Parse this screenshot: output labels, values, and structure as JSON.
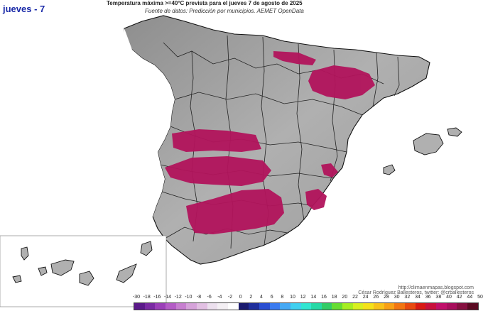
{
  "header": {
    "day_label": "jueves - 7",
    "title": "Temperatura máxima >=40°C prevista para el jueves 7 de agosto de 2025",
    "subtitle": "Fuente de datos: Predicción por municipios. AEMET OpenData"
  },
  "credits": {
    "line1": "http://climaenmapas.blogspot.com",
    "line2": "César Rodríguez Ballesteros, twitter: @crballesteros"
  },
  "legend": {
    "labels": [
      "-30",
      "-18",
      "-16",
      "-14",
      "-12",
      "-10",
      "-8",
      "-6",
      "-4",
      "-2",
      "0",
      "2",
      "4",
      "6",
      "8",
      "10",
      "12",
      "14",
      "16",
      "18",
      "20",
      "22",
      "24",
      "26",
      "28",
      "30",
      "32",
      "34",
      "36",
      "38",
      "40",
      "42",
      "44",
      "50"
    ],
    "colors": [
      "#5b1a8a",
      "#7a2aa3",
      "#9b3fb8",
      "#b45cc6",
      "#c77fd0",
      "#d6a3da",
      "#e2c0e3",
      "#ece0ee",
      "#f4f0f4",
      "#ffffff",
      "#1a1a6e",
      "#1f2f9c",
      "#2a4fd2",
      "#3a7bf0",
      "#45a9f5",
      "#40d0f0",
      "#32e6d2",
      "#26d9a6",
      "#33cc66",
      "#66dd33",
      "#a6ee22",
      "#d8f020",
      "#f4e21a",
      "#f8c21a",
      "#f8a016",
      "#f27612",
      "#e84a10",
      "#d81a14",
      "#c8103c",
      "#c00f6a",
      "#a80e5c",
      "#861040",
      "#5a0a22"
    ]
  },
  "map": {
    "land_color": "#a9a9a9",
    "highlight_color": "#b2145c",
    "border_color": "#222222"
  }
}
